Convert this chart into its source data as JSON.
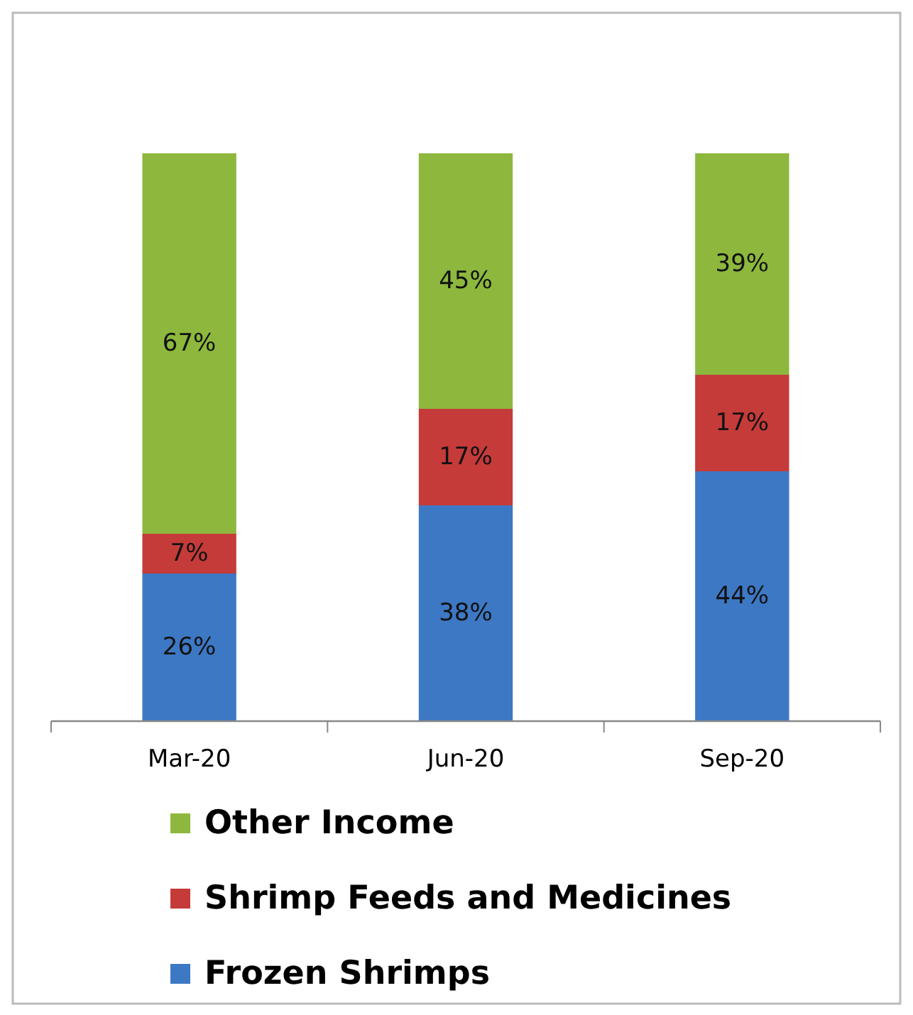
{
  "chart_data": {
    "type": "bar",
    "stacked": true,
    "legend": "bottom",
    "categories": [
      "Mar-20",
      "Jun-20",
      "Sep-20"
    ],
    "series": [
      {
        "name": "Frozen Shrimps",
        "color": "#3d78c4",
        "values": [
          26,
          38,
          44
        ],
        "value_labels": [
          "26%",
          "38%",
          "44%"
        ]
      },
      {
        "name": "Shrimp Feeds and Medicines",
        "color": "#c43b3a",
        "values": [
          7,
          17,
          17
        ],
        "value_labels": [
          "7%",
          "17%",
          "17%"
        ]
      },
      {
        "name": "Other Income",
        "color": "#8db83d",
        "values": [
          67,
          45,
          39
        ],
        "value_labels": [
          "67%",
          "45%",
          "39%"
        ]
      }
    ]
  }
}
